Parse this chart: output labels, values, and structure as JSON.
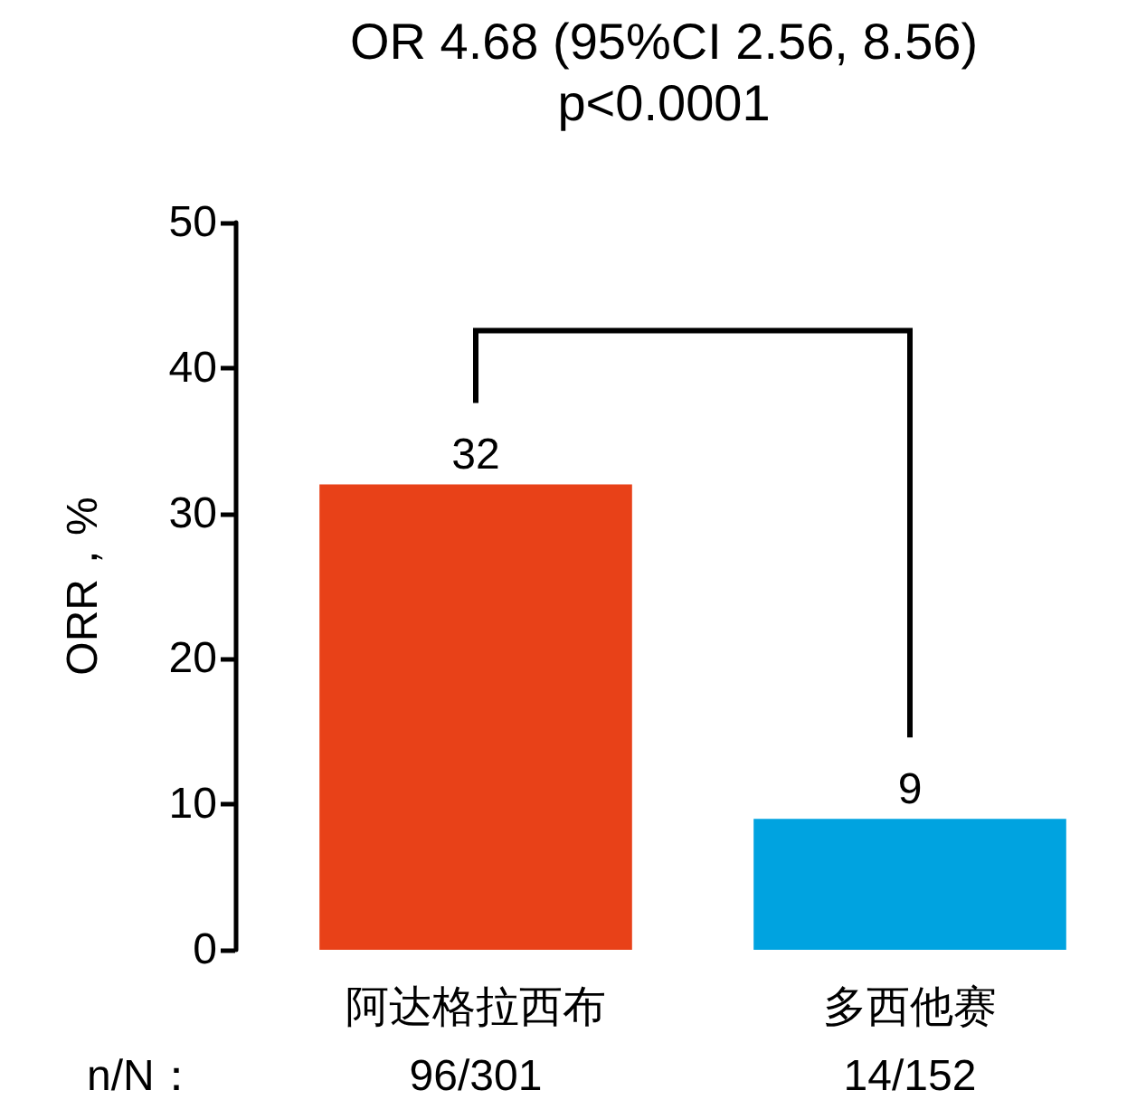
{
  "chart_data": {
    "type": "bar",
    "title": "OR 4.68 (95%CI 2.56, 8.56)",
    "subtitle": "p<0.0001",
    "ylabel": "ORR，%",
    "categories": [
      "阿达格拉西布",
      "多西他赛"
    ],
    "values": [
      32,
      9
    ],
    "colors": [
      "#e84118",
      "#00a3e0"
    ],
    "ylim": [
      0,
      50
    ],
    "yticks": [
      0,
      10,
      20,
      30,
      40,
      50
    ],
    "grid": false,
    "data_labels": true,
    "annotations": [
      "n/N：",
      "96/301",
      "14/152"
    ]
  }
}
